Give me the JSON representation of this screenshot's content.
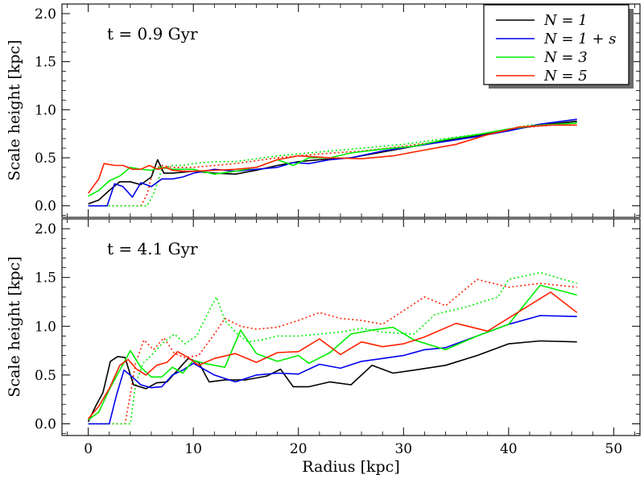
{
  "chart_data": {
    "type": "line",
    "xlabel": "Radius [kpc]",
    "ylabel": "Scale height [kpc]",
    "xlim": [
      -2.5,
      52.5
    ],
    "ylim": [
      -0.12,
      2.1
    ],
    "x_ticks": [
      0,
      10,
      20,
      30,
      40,
      50
    ],
    "y_ticks": [
      0.0,
      0.5,
      1.0,
      1.5,
      2.0
    ],
    "x_tick_labels": [
      "0",
      "10",
      "20",
      "30",
      "40",
      "50"
    ],
    "y_tick_labels": [
      "0.0",
      "0.5",
      "1.0",
      "1.5",
      "2.0"
    ],
    "legend": {
      "position": "top-right",
      "entries": [
        {
          "label": "N = 1",
          "color": "#000000"
        },
        {
          "label": "N = 1 + s",
          "color": "#0000ee"
        },
        {
          "label": "N = 3",
          "color": "#00ee00"
        },
        {
          "label": "N = 5",
          "color": "#ff2200"
        }
      ]
    },
    "panels": [
      {
        "annotation": "t = 0.9 Gyr",
        "series": [
          {
            "name": "N = 1",
            "color": "#000000",
            "style": "solid",
            "x": [
              0,
              1,
              2,
              3,
              4,
              5,
              6,
              6.6,
              7.2,
              8,
              9,
              10,
              12,
              14,
              16,
              18,
              20,
              22,
              25,
              28,
              31,
              34,
              37,
              40,
              43,
              46.5
            ],
            "y": [
              0.02,
              0.06,
              0.16,
              0.25,
              0.25,
              0.22,
              0.3,
              0.48,
              0.34,
              0.34,
              0.35,
              0.36,
              0.34,
              0.33,
              0.37,
              0.42,
              0.46,
              0.48,
              0.5,
              0.56,
              0.62,
              0.68,
              0.73,
              0.79,
              0.84,
              0.88
            ]
          },
          {
            "name": "N = 1 + s",
            "color": "#0000ee",
            "style": "solid",
            "x": [
              0,
              1,
              1.8,
              2.5,
              3.3,
              4.2,
              5,
              6,
              7,
              8,
              9,
              10,
              12,
              14,
              16,
              18,
              19.5,
              21,
              23,
              25,
              28,
              31,
              34,
              37,
              40,
              43,
              46.5
            ],
            "y": [
              0.0,
              0.0,
              0.0,
              0.23,
              0.2,
              0.09,
              0.24,
              0.2,
              0.28,
              0.28,
              0.3,
              0.34,
              0.38,
              0.36,
              0.38,
              0.4,
              0.45,
              0.44,
              0.48,
              0.5,
              0.57,
              0.62,
              0.67,
              0.72,
              0.78,
              0.85,
              0.9
            ]
          },
          {
            "name": "N = 3",
            "color": "#00ee00",
            "style": "solid",
            "x": [
              0,
              1,
              2,
              3,
              4,
              5,
              6,
              7,
              8,
              10,
              12,
              14,
              16,
              18,
              19.5,
              21,
              23,
              25,
              28,
              31,
              34,
              37,
              40,
              43,
              46.5
            ],
            "y": [
              0.1,
              0.16,
              0.26,
              0.31,
              0.4,
              0.38,
              0.37,
              0.4,
              0.38,
              0.38,
              0.33,
              0.36,
              0.4,
              0.48,
              0.42,
              0.5,
              0.5,
              0.55,
              0.59,
              0.62,
              0.69,
              0.74,
              0.8,
              0.84,
              0.86
            ]
          },
          {
            "name": "N = 5",
            "color": "#ff2200",
            "style": "solid",
            "x": [
              0,
              1,
              1.5,
              2.5,
              3.3,
              4.2,
              5,
              5.8,
              6.6,
              7.4,
              8,
              9,
              10,
              12,
              14,
              16,
              18,
              20,
              23,
              26,
              29,
              32,
              35,
              38,
              41,
              44,
              46.5
            ],
            "y": [
              0.13,
              0.28,
              0.44,
              0.42,
              0.42,
              0.38,
              0.38,
              0.42,
              0.38,
              0.4,
              0.37,
              0.36,
              0.36,
              0.37,
              0.38,
              0.4,
              0.48,
              0.52,
              0.5,
              0.49,
              0.52,
              0.58,
              0.64,
              0.74,
              0.82,
              0.84,
              0.84
            ]
          },
          {
            "name": "N = 5 (dotted)",
            "color": "#ff2200",
            "style": "dotted",
            "x": [
              0,
              4,
              5,
              5.6,
              6.2,
              7,
              8,
              10,
              14,
              18,
              22,
              26,
              30,
              34,
              38,
              42,
              46.5
            ],
            "y": [
              0.0,
              0.0,
              0.0,
              0.12,
              0.38,
              0.42,
              0.4,
              0.4,
              0.44,
              0.5,
              0.54,
              0.57,
              0.62,
              0.68,
              0.76,
              0.82,
              0.86
            ]
          },
          {
            "name": "N = 3 (dotted)",
            "color": "#00ee00",
            "style": "dotted",
            "x": [
              0,
              3,
              5.2,
              5.6,
              6.2,
              7,
              8,
              9,
              10,
              12,
              14,
              18,
              22,
              26,
              30,
              34,
              38,
              42,
              46.5
            ],
            "y": [
              0.0,
              0.0,
              0.0,
              0.0,
              0.12,
              0.38,
              0.42,
              0.42,
              0.44,
              0.46,
              0.46,
              0.52,
              0.56,
              0.6,
              0.64,
              0.7,
              0.76,
              0.84,
              0.87
            ]
          }
        ]
      },
      {
        "annotation": "t = 4.1 Gyr",
        "series": [
          {
            "name": "N = 1",
            "color": "#000000",
            "style": "solid",
            "x": [
              0,
              0.7,
              1.4,
              2.1,
              2.8,
              3.5,
              4.3,
              5.5,
              6.5,
              7.5,
              8.5,
              9.5,
              10.5,
              11.5,
              13,
              15,
              17,
              18.3,
              19.5,
              21,
              23,
              25,
              27,
              29,
              31,
              34,
              37,
              40,
              43,
              46.5
            ],
            "y": [
              0.02,
              0.18,
              0.32,
              0.64,
              0.69,
              0.68,
              0.4,
              0.36,
              0.42,
              0.43,
              0.55,
              0.67,
              0.63,
              0.43,
              0.45,
              0.45,
              0.49,
              0.56,
              0.38,
              0.38,
              0.43,
              0.4,
              0.6,
              0.52,
              0.55,
              0.6,
              0.7,
              0.82,
              0.85,
              0.84
            ]
          },
          {
            "name": "N = 1 + s",
            "color": "#0000ee",
            "style": "solid",
            "x": [
              0,
              1,
              2,
              2.7,
              3.4,
              4.2,
              5,
              6,
              7,
              8,
              9,
              10,
              12,
              14,
              16,
              18,
              20,
              22,
              24,
              26,
              28,
              30,
              32,
              34,
              37,
              40,
              43,
              46.5
            ],
            "y": [
              0.0,
              0.0,
              0.0,
              0.3,
              0.55,
              0.48,
              0.4,
              0.37,
              0.38,
              0.5,
              0.55,
              0.62,
              0.5,
              0.43,
              0.5,
              0.52,
              0.51,
              0.61,
              0.57,
              0.64,
              0.67,
              0.7,
              0.76,
              0.78,
              0.9,
              1.02,
              1.11,
              1.1
            ]
          },
          {
            "name": "N = 3",
            "color": "#00ee00",
            "style": "solid",
            "x": [
              0,
              1,
              2,
              3,
              4,
              5,
              6,
              7,
              8,
              9,
              10,
              11,
              13,
              14.5,
              16,
              17,
              18,
              20,
              21,
              23,
              25,
              27,
              29,
              31,
              34,
              37,
              40,
              43,
              46.5
            ],
            "y": [
              0.04,
              0.12,
              0.35,
              0.55,
              0.75,
              0.58,
              0.48,
              0.48,
              0.58,
              0.52,
              0.65,
              0.62,
              0.58,
              0.96,
              0.72,
              0.68,
              0.64,
              0.7,
              0.62,
              0.73,
              0.92,
              0.96,
              0.99,
              0.86,
              0.76,
              0.9,
              1.02,
              1.42,
              1.32
            ]
          },
          {
            "name": "N = 5",
            "color": "#ff2200",
            "style": "solid",
            "x": [
              0,
              1,
              2,
              3,
              3.8,
              4.6,
              5.5,
              6.5,
              7.5,
              8.5,
              9.5,
              10.5,
              12,
              14,
              16,
              18,
              20,
              22,
              24,
              26,
              28,
              30,
              32,
              35,
              38,
              41,
              44,
              46.5
            ],
            "y": [
              0.05,
              0.18,
              0.36,
              0.6,
              0.66,
              0.56,
              0.5,
              0.6,
              0.63,
              0.74,
              0.68,
              0.6,
              0.67,
              0.72,
              0.63,
              0.73,
              0.74,
              0.87,
              0.71,
              0.84,
              0.79,
              0.82,
              0.89,
              1.03,
              0.95,
              1.15,
              1.35,
              1.14
            ]
          },
          {
            "name": "N = 5 (dotted)",
            "color": "#ff2200",
            "style": "dotted",
            "x": [
              0,
              1,
              2.5,
              3.5,
              4,
              4.5,
              5.3,
              6.2,
              7.2,
              8.2,
              9.2,
              10.5,
              12,
              13,
              14.5,
              16,
              18,
              20,
              22,
              24,
              26,
              28,
              30,
              32,
              34,
              37,
              40,
              43,
              46.5
            ],
            "y": [
              0.0,
              0.0,
              0.0,
              0.0,
              0.3,
              0.62,
              0.86,
              0.76,
              0.88,
              0.72,
              0.68,
              0.7,
              0.92,
              1.08,
              1.0,
              0.97,
              0.99,
              1.06,
              1.14,
              1.08,
              1.06,
              1.02,
              1.16,
              1.3,
              1.21,
              1.48,
              1.4,
              1.44,
              1.4
            ]
          },
          {
            "name": "N = 3 (dotted)",
            "color": "#00ee00",
            "style": "dotted",
            "x": [
              0,
              1,
              3,
              4,
              4.5,
              5.2,
              6,
              7,
              8.2,
              9.2,
              10.3,
              11.5,
              12.2,
              13,
              14.2,
              15.2,
              16.5,
              18,
              20,
              22,
              24,
              26,
              28,
              31,
              33,
              36,
              39,
              40,
              43,
              46.5
            ],
            "y": [
              0.0,
              0.0,
              0.0,
              0.0,
              0.4,
              0.62,
              0.7,
              0.82,
              0.92,
              0.82,
              0.9,
              1.16,
              1.3,
              1.06,
              0.92,
              0.84,
              0.86,
              0.9,
              0.9,
              0.92,
              0.94,
              0.98,
              0.94,
              0.92,
              1.12,
              1.2,
              1.3,
              1.48,
              1.55,
              1.44
            ]
          }
        ]
      }
    ]
  }
}
